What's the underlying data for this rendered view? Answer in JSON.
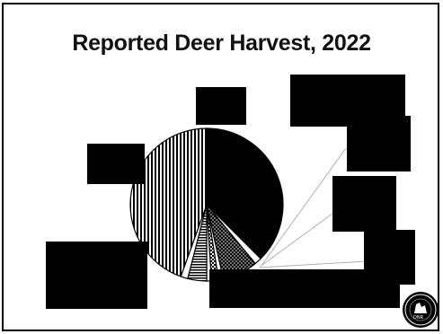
{
  "slide": {
    "title": "Reported Deer Harvest, 2022"
  },
  "colors": {
    "border": "#000000",
    "redaction": "#000000",
    "leader_line": "#b0b0b0",
    "text": "#111111"
  },
  "logo": {
    "icon": "michigan-dnr-seal-icon"
  },
  "chart_data": {
    "type": "pie",
    "title": "Reported Deer Harvest, 2022",
    "legend": "none (slice labels redacted)",
    "slices": [
      {
        "pattern": "solid-black",
        "value": 37.5
      },
      {
        "pattern": "white",
        "value": 1.5
      },
      {
        "pattern": "dotted",
        "value": 7.5
      },
      {
        "pattern": "white",
        "value": 1.0
      },
      {
        "pattern": "checkered",
        "value": 1.5
      },
      {
        "pattern": "white",
        "value": 1.0
      },
      {
        "pattern": "horizontal-stripes",
        "value": 4.0
      },
      {
        "pattern": "white",
        "value": 1.5
      },
      {
        "pattern": "vertical-stripes",
        "value": 44.5
      }
    ]
  }
}
